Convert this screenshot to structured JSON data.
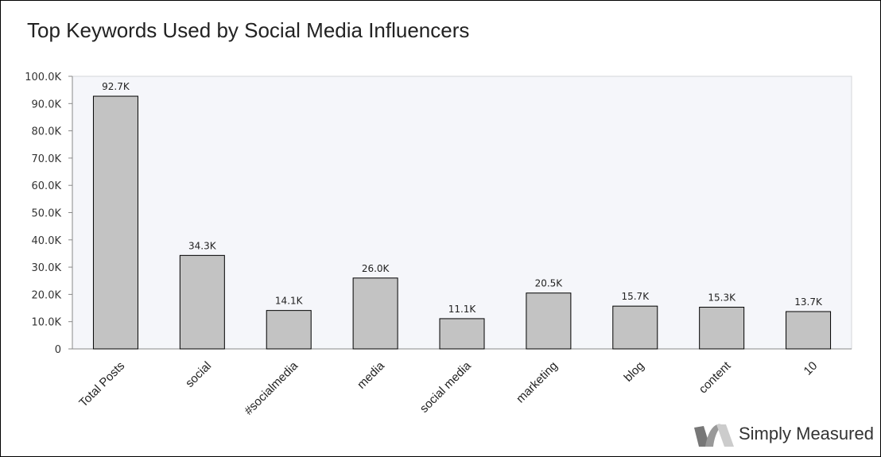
{
  "chart_data": {
    "type": "bar",
    "title": "Top Keywords Used by Social Media Influencers",
    "categories": [
      "Total Posts",
      "social",
      "#socialmedia",
      "media",
      "social media",
      "marketing",
      "blog",
      "content",
      "10"
    ],
    "values": [
      92700,
      34300,
      14100,
      26000,
      11100,
      20500,
      15700,
      15300,
      13700
    ],
    "data_labels": [
      "92.7K",
      "34.3K",
      "14.1K",
      "26.0K",
      "11.1K",
      "20.5K",
      "15.7K",
      "15.3K",
      "13.7K"
    ],
    "y_ticks": [
      0,
      10000,
      20000,
      30000,
      40000,
      50000,
      60000,
      70000,
      80000,
      90000,
      100000
    ],
    "y_tick_labels": [
      "0",
      "10.0K",
      "20.0K",
      "30.0K",
      "40.0K",
      "50.0K",
      "60.0K",
      "70.0K",
      "80.0K",
      "90.0K",
      "100.0K"
    ],
    "ylim": [
      0,
      100000
    ],
    "xlabel": "",
    "ylabel": "",
    "grid": false,
    "colors": {
      "bar": "#c3c3c3",
      "bar_stroke": "#000000",
      "plot_bg": "#f5f6fa"
    }
  },
  "brand": "Simply Measured"
}
